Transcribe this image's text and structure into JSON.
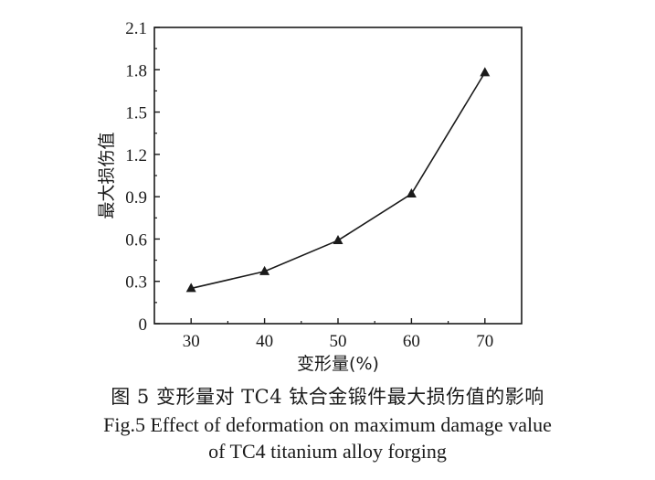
{
  "chart_data": {
    "type": "line",
    "title": "",
    "xlabel": "变形量(%)",
    "ylabel": "最大损伤值",
    "x": [
      30,
      40,
      50,
      60,
      70
    ],
    "series": [
      {
        "name": "最大损伤值",
        "marker": "triangle",
        "values": [
          0.25,
          0.37,
          0.59,
          0.92,
          1.78
        ]
      }
    ],
    "xticks": [
      "30",
      "40",
      "50",
      "60",
      "70"
    ],
    "yticks": [
      "0",
      "0.3",
      "0.6",
      "0.9",
      "1.2",
      "1.5",
      "1.8",
      "2.1"
    ],
    "xlim": [
      25,
      75
    ],
    "ylim": [
      0,
      2.1
    ],
    "grid": false,
    "legend": "none"
  },
  "caption": {
    "cn": "图 5  变形量对 TC4 钛合金锻件最大损伤值的影响",
    "en_line1": "Fig.5  Effect of deformation on maximum damage value",
    "en_line2": "of TC4 titanium alloy forging"
  },
  "colors": {
    "line": "#1a1a1a",
    "marker": "#1a1a1a",
    "axis": "#1a1a1a"
  }
}
